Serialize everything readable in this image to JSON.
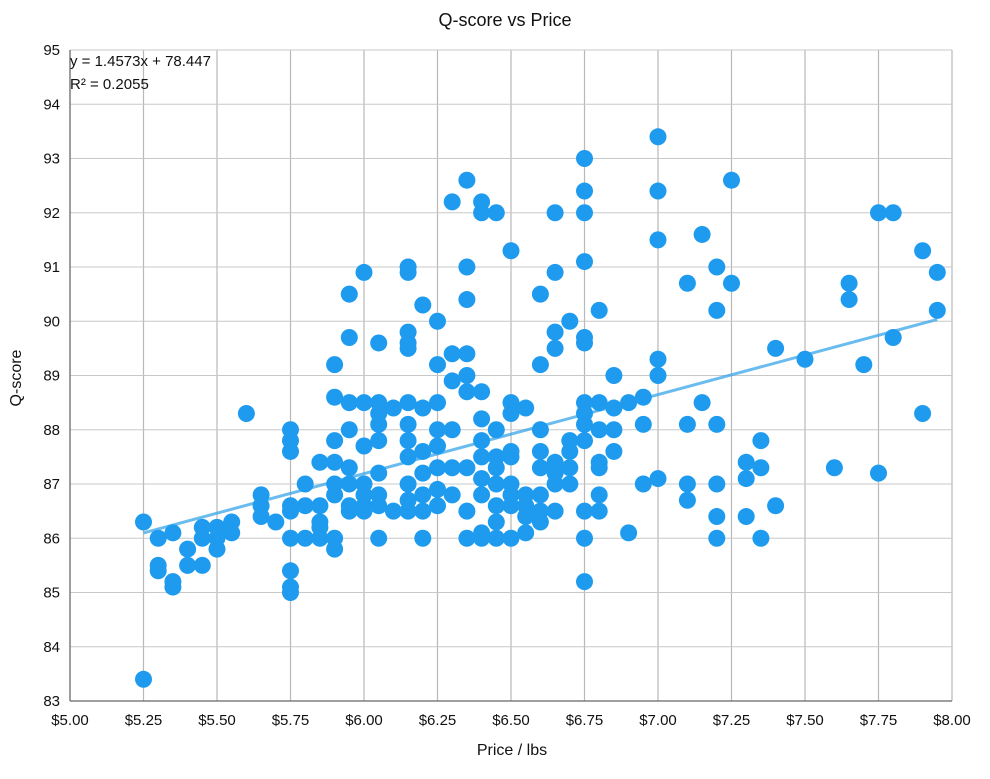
{
  "chart_data": {
    "type": "scatter",
    "title": "Q-score vs Price",
    "xlabel": "Price / lbs",
    "ylabel": "Q-score",
    "xlim": [
      5.0,
      8.0
    ],
    "ylim": [
      83,
      95
    ],
    "x_ticks": [
      "$5.00",
      "$5.25",
      "$5.50",
      "$5.75",
      "$6.00",
      "$6.25",
      "$6.50",
      "$6.75",
      "$7.00",
      "$7.25",
      "$7.50",
      "$7.75",
      "$8.00"
    ],
    "y_ticks": [
      "83",
      "84",
      "85",
      "86",
      "87",
      "88",
      "89",
      "90",
      "91",
      "92",
      "93",
      "94",
      "95"
    ],
    "grid": true,
    "marker_color": "#1e9bef",
    "trendline": {
      "equation": "y = 1.4573x + 78.447",
      "r_squared": "R² = 0.2055",
      "slope": 1.4573,
      "intercept": 78.447,
      "x_range": [
        5.25,
        7.95
      ],
      "color": "#3aa6e8"
    },
    "points": [
      [
        5.25,
        86.3
      ],
      [
        5.25,
        83.4
      ],
      [
        5.3,
        86.0
      ],
      [
        5.3,
        85.5
      ],
      [
        5.3,
        85.4
      ],
      [
        5.35,
        86.1
      ],
      [
        5.35,
        85.2
      ],
      [
        5.35,
        85.1
      ],
      [
        5.4,
        85.8
      ],
      [
        5.4,
        85.5
      ],
      [
        5.45,
        86.2
      ],
      [
        5.45,
        86.0
      ],
      [
        5.45,
        85.5
      ],
      [
        5.5,
        86.2
      ],
      [
        5.5,
        86.0
      ],
      [
        5.5,
        85.8
      ],
      [
        5.55,
        86.3
      ],
      [
        5.55,
        86.1
      ],
      [
        5.6,
        88.3
      ],
      [
        5.65,
        86.8
      ],
      [
        5.65,
        86.6
      ],
      [
        5.65,
        86.4
      ],
      [
        5.7,
        86.3
      ],
      [
        5.75,
        88.0
      ],
      [
        5.75,
        87.8
      ],
      [
        5.75,
        87.6
      ],
      [
        5.75,
        86.6
      ],
      [
        5.75,
        86.5
      ],
      [
        5.75,
        86.0
      ],
      [
        5.75,
        85.4
      ],
      [
        5.75,
        85.1
      ],
      [
        5.75,
        85.0
      ],
      [
        5.8,
        87.0
      ],
      [
        5.8,
        86.6
      ],
      [
        5.8,
        86.0
      ],
      [
        5.85,
        87.4
      ],
      [
        5.85,
        86.6
      ],
      [
        5.85,
        86.3
      ],
      [
        5.85,
        86.2
      ],
      [
        5.85,
        86.0
      ],
      [
        5.9,
        89.2
      ],
      [
        5.9,
        88.6
      ],
      [
        5.9,
        87.8
      ],
      [
        5.9,
        87.4
      ],
      [
        5.9,
        87.0
      ],
      [
        5.9,
        86.8
      ],
      [
        5.9,
        86.0
      ],
      [
        5.9,
        85.8
      ],
      [
        5.95,
        90.5
      ],
      [
        5.95,
        89.7
      ],
      [
        5.95,
        88.5
      ],
      [
        5.95,
        88.0
      ],
      [
        5.95,
        87.3
      ],
      [
        5.95,
        87.0
      ],
      [
        5.95,
        86.6
      ],
      [
        5.95,
        86.5
      ],
      [
        6.0,
        90.9
      ],
      [
        6.0,
        88.5
      ],
      [
        6.0,
        87.7
      ],
      [
        6.0,
        87.0
      ],
      [
        6.0,
        86.8
      ],
      [
        6.0,
        86.6
      ],
      [
        6.0,
        86.5
      ],
      [
        6.05,
        89.6
      ],
      [
        6.05,
        88.5
      ],
      [
        6.05,
        88.3
      ],
      [
        6.05,
        88.1
      ],
      [
        6.05,
        87.8
      ],
      [
        6.05,
        87.2
      ],
      [
        6.05,
        86.8
      ],
      [
        6.05,
        86.6
      ],
      [
        6.05,
        86.0
      ],
      [
        6.1,
        88.4
      ],
      [
        6.1,
        86.5
      ],
      [
        6.15,
        91.0
      ],
      [
        6.15,
        90.9
      ],
      [
        6.15,
        89.8
      ],
      [
        6.15,
        89.6
      ],
      [
        6.15,
        89.5
      ],
      [
        6.15,
        88.5
      ],
      [
        6.15,
        88.1
      ],
      [
        6.15,
        87.8
      ],
      [
        6.15,
        87.5
      ],
      [
        6.15,
        87.0
      ],
      [
        6.15,
        86.7
      ],
      [
        6.15,
        86.5
      ],
      [
        6.2,
        90.3
      ],
      [
        6.2,
        88.4
      ],
      [
        6.2,
        87.6
      ],
      [
        6.2,
        87.2
      ],
      [
        6.2,
        86.8
      ],
      [
        6.2,
        86.5
      ],
      [
        6.2,
        86.0
      ],
      [
        6.25,
        90.0
      ],
      [
        6.25,
        89.2
      ],
      [
        6.25,
        88.5
      ],
      [
        6.25,
        88.0
      ],
      [
        6.25,
        87.7
      ],
      [
        6.25,
        87.3
      ],
      [
        6.25,
        86.9
      ],
      [
        6.25,
        86.6
      ],
      [
        6.3,
        92.2
      ],
      [
        6.3,
        89.4
      ],
      [
        6.3,
        88.9
      ],
      [
        6.3,
        88.0
      ],
      [
        6.3,
        87.3
      ],
      [
        6.3,
        86.8
      ],
      [
        6.35,
        92.6
      ],
      [
        6.35,
        91.0
      ],
      [
        6.35,
        90.4
      ],
      [
        6.35,
        89.4
      ],
      [
        6.35,
        89.0
      ],
      [
        6.35,
        88.7
      ],
      [
        6.35,
        87.3
      ],
      [
        6.35,
        86.5
      ],
      [
        6.35,
        86.0
      ],
      [
        6.4,
        92.2
      ],
      [
        6.4,
        92.0
      ],
      [
        6.4,
        88.7
      ],
      [
        6.4,
        88.2
      ],
      [
        6.4,
        87.8
      ],
      [
        6.4,
        87.5
      ],
      [
        6.4,
        87.1
      ],
      [
        6.4,
        86.8
      ],
      [
        6.4,
        86.1
      ],
      [
        6.4,
        86.0
      ],
      [
        6.45,
        92.0
      ],
      [
        6.45,
        88.0
      ],
      [
        6.45,
        87.5
      ],
      [
        6.45,
        87.3
      ],
      [
        6.45,
        87.0
      ],
      [
        6.45,
        86.6
      ],
      [
        6.45,
        86.3
      ],
      [
        6.45,
        86.0
      ],
      [
        6.5,
        91.3
      ],
      [
        6.5,
        88.5
      ],
      [
        6.5,
        88.3
      ],
      [
        6.5,
        87.6
      ],
      [
        6.5,
        87.5
      ],
      [
        6.5,
        87.0
      ],
      [
        6.5,
        86.8
      ],
      [
        6.5,
        86.6
      ],
      [
        6.5,
        86.0
      ],
      [
        6.55,
        88.4
      ],
      [
        6.55,
        86.8
      ],
      [
        6.55,
        86.6
      ],
      [
        6.55,
        86.4
      ],
      [
        6.55,
        86.1
      ],
      [
        6.6,
        90.5
      ],
      [
        6.6,
        89.2
      ],
      [
        6.6,
        88.0
      ],
      [
        6.6,
        87.6
      ],
      [
        6.6,
        87.3
      ],
      [
        6.6,
        86.8
      ],
      [
        6.6,
        86.5
      ],
      [
        6.6,
        86.3
      ],
      [
        6.65,
        92.0
      ],
      [
        6.65,
        90.9
      ],
      [
        6.65,
        89.8
      ],
      [
        6.65,
        89.5
      ],
      [
        6.65,
        87.4
      ],
      [
        6.65,
        87.2
      ],
      [
        6.65,
        87.0
      ],
      [
        6.65,
        86.5
      ],
      [
        6.7,
        90.0
      ],
      [
        6.7,
        87.8
      ],
      [
        6.7,
        87.6
      ],
      [
        6.7,
        87.3
      ],
      [
        6.7,
        87.0
      ],
      [
        6.75,
        93.0
      ],
      [
        6.75,
        92.4
      ],
      [
        6.75,
        92.0
      ],
      [
        6.75,
        91.1
      ],
      [
        6.75,
        89.7
      ],
      [
        6.75,
        89.6
      ],
      [
        6.75,
        88.5
      ],
      [
        6.75,
        88.3
      ],
      [
        6.75,
        88.1
      ],
      [
        6.75,
        87.8
      ],
      [
        6.75,
        86.5
      ],
      [
        6.75,
        86.0
      ],
      [
        6.75,
        85.2
      ],
      [
        6.8,
        90.2
      ],
      [
        6.8,
        88.5
      ],
      [
        6.8,
        88.0
      ],
      [
        6.8,
        87.4
      ],
      [
        6.8,
        87.3
      ],
      [
        6.8,
        86.8
      ],
      [
        6.8,
        86.5
      ],
      [
        6.85,
        89.0
      ],
      [
        6.85,
        88.4
      ],
      [
        6.85,
        88.0
      ],
      [
        6.85,
        87.6
      ],
      [
        6.9,
        88.5
      ],
      [
        6.9,
        86.1
      ],
      [
        6.95,
        88.6
      ],
      [
        6.95,
        88.1
      ],
      [
        6.95,
        87.0
      ],
      [
        7.0,
        93.4
      ],
      [
        7.0,
        92.4
      ],
      [
        7.0,
        91.5
      ],
      [
        7.0,
        89.3
      ],
      [
        7.0,
        89.0
      ],
      [
        7.0,
        87.1
      ],
      [
        7.1,
        90.7
      ],
      [
        7.1,
        88.1
      ],
      [
        7.1,
        87.0
      ],
      [
        7.1,
        86.7
      ],
      [
        7.15,
        91.6
      ],
      [
        7.15,
        88.5
      ],
      [
        7.2,
        91.0
      ],
      [
        7.2,
        90.2
      ],
      [
        7.2,
        88.1
      ],
      [
        7.2,
        87.0
      ],
      [
        7.2,
        86.4
      ],
      [
        7.2,
        86.0
      ],
      [
        7.25,
        92.6
      ],
      [
        7.25,
        90.7
      ],
      [
        7.3,
        87.4
      ],
      [
        7.3,
        87.1
      ],
      [
        7.3,
        86.4
      ],
      [
        7.35,
        87.8
      ],
      [
        7.35,
        87.3
      ],
      [
        7.35,
        86.0
      ],
      [
        7.4,
        89.5
      ],
      [
        7.4,
        86.6
      ],
      [
        7.5,
        89.3
      ],
      [
        7.6,
        87.3
      ],
      [
        7.65,
        90.7
      ],
      [
        7.65,
        90.4
      ],
      [
        7.7,
        89.2
      ],
      [
        7.75,
        92.0
      ],
      [
        7.75,
        87.2
      ],
      [
        7.8,
        92.0
      ],
      [
        7.8,
        89.7
      ],
      [
        7.9,
        91.3
      ],
      [
        7.9,
        88.3
      ],
      [
        7.95,
        90.9
      ],
      [
        7.95,
        90.2
      ]
    ]
  }
}
